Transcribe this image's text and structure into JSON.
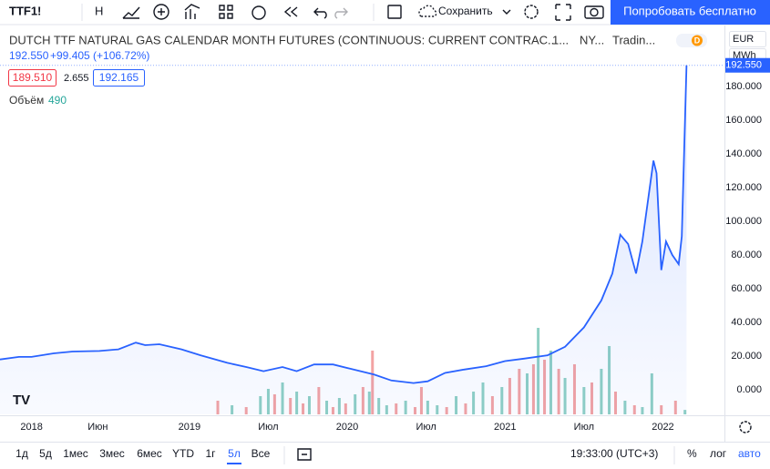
{
  "toolbar": {
    "symbol": "TTF1!",
    "interval": "H",
    "save": "Сохранить",
    "try_button": "Попробовать бесплатно"
  },
  "legend": {
    "title": "DUTCH TTF NATURAL GAS CALENDAR MONTH FUTURES (CONTINUOUS: CURRENT CONTRAC...",
    "interval": "1...",
    "exchange": "NY...",
    "source": "Tradin...",
    "badge": "D",
    "price": "192.550",
    "change": "+99.405 (+106.72%)",
    "bid": "189.510",
    "spread": "2.655",
    "ask": "192.165",
    "volume_label": "Объём",
    "volume": "490"
  },
  "currency": "EUR",
  "unit": "MWh",
  "chart_data": {
    "type": "line",
    "color": "#2962ff",
    "x": [
      2017.8,
      2017.92,
      2018,
      2018.14,
      2018.26,
      2018.43,
      2018.55,
      2018.66,
      2018.72,
      2018.81,
      2018.95,
      2019.07,
      2019.24,
      2019.36,
      2019.47,
      2019.59,
      2019.68,
      2019.79,
      2019.91,
      2020.02,
      2020.17,
      2020.28,
      2020.42,
      2020.51,
      2020.62,
      2020.74,
      2020.88,
      2021,
      2021.12,
      2021.27,
      2021.38,
      2021.5,
      2021.61,
      2021.68,
      2021.73,
      2021.78,
      2021.83,
      2021.87,
      2021.94,
      2021.96,
      2021.99,
      2022.02,
      2022.06,
      2022.1,
      2022.12,
      2022.15
    ],
    "values": [
      18,
      19.5,
      19.5,
      21.6,
      22.7,
      23,
      24,
      28,
      26.5,
      27,
      24,
      20.5,
      16,
      13.5,
      11,
      13.5,
      11,
      15,
      15,
      12.5,
      9,
      5.5,
      4,
      5,
      10,
      12,
      14,
      17,
      18.5,
      20.5,
      25.5,
      37,
      53,
      69,
      92,
      86.5,
      69,
      88,
      136,
      128.5,
      71,
      88,
      80,
      74.5,
      91,
      192.55
    ],
    "xlim": [
      2017.8,
      2022.39
    ],
    "xticks": [
      2018,
      {
        "value": 2018.42,
        "label": "Июн"
      },
      2019,
      {
        "value": 2019.5,
        "label": "Июл"
      },
      2020,
      {
        "value": 2020.5,
        "label": "Июл"
      },
      2021,
      {
        "value": 2021.5,
        "label": "Июл"
      },
      2022
    ],
    "ylim": [
      -14.6,
      215.1
    ],
    "yticks": [
      {
        "value": 0,
        "label": "0.000"
      },
      {
        "value": 20,
        "label": "20.000"
      },
      {
        "value": 40,
        "label": "40.000"
      },
      {
        "value": 60,
        "label": "60.000"
      },
      {
        "value": 80,
        "label": "80.000"
      },
      {
        "value": 100,
        "label": "100.000"
      },
      {
        "value": 120,
        "label": "120.000"
      },
      {
        "value": 140,
        "label": "140.000"
      },
      {
        "value": 160,
        "label": "160.000"
      },
      {
        "value": 180,
        "label": "180.000"
      }
    ]
  },
  "volume": {
    "type": "bar",
    "x": [
      2019.18,
      2019.27,
      2019.36,
      2019.45,
      2019.5,
      2019.54,
      2019.59,
      2019.64,
      2019.68,
      2019.72,
      2019.76,
      2019.82,
      2019.87,
      2019.91,
      2019.95,
      2019.99,
      2020.05,
      2020.1,
      2020.14,
      2020.16,
      2020.2,
      2020.25,
      2020.31,
      2020.37,
      2020.43,
      2020.47,
      2020.51,
      2020.57,
      2020.63,
      2020.69,
      2020.75,
      2020.8,
      2020.86,
      2020.92,
      2020.98,
      2021.03,
      2021.09,
      2021.14,
      2021.18,
      2021.21,
      2021.25,
      2021.29,
      2021.34,
      2021.38,
      2021.44,
      2021.5,
      2021.55,
      2021.61,
      2021.66,
      2021.7,
      2021.76,
      2021.82,
      2021.87,
      2021.93,
      2021.99,
      2022.08,
      2022.14
    ],
    "values": [
      1500,
      1000,
      800,
      2000,
      2800,
      2200,
      3500,
      1800,
      2500,
      1200,
      2000,
      3000,
      1500,
      800,
      1800,
      1200,
      2200,
      3000,
      2500,
      7000,
      1800,
      1000,
      1200,
      1500,
      800,
      3000,
      1500,
      1000,
      800,
      2000,
      1200,
      2500,
      3500,
      2000,
      3000,
      4000,
      5000,
      4500,
      5500,
      9500,
      6000,
      7000,
      5000,
      4000,
      5500,
      3000,
      3500,
      5000,
      7500,
      2500,
      1500,
      1000,
      800,
      4500,
      1000,
      1500,
      490
    ],
    "colors": [
      "#f3a3a3",
      "#8fd0c4",
      "#f3a3a3",
      "#8fd0c4",
      "#8fd0c4",
      "#f3a3a3",
      "#8fd0c4",
      "#f3a3a3",
      "#8fd0c4",
      "#f3a3a3",
      "#8fd0c4",
      "#f3a3a3",
      "#8fd0c4",
      "#f3a3a3",
      "#8fd0c4",
      "#f3a3a3",
      "#8fd0c4",
      "#f3a3a3",
      "#8fd0c4",
      "#f3a3a3",
      "#8fd0c4",
      "#8fd0c4",
      "#f3a3a3",
      "#8fd0c4",
      "#f3a3a3",
      "#f3a3a3",
      "#8fd0c4",
      "#8fd0c4",
      "#f3a3a3",
      "#8fd0c4",
      "#f3a3a3",
      "#8fd0c4",
      "#8fd0c4",
      "#f3a3a3",
      "#8fd0c4",
      "#f3a3a3",
      "#f3a3a3",
      "#8fd0c4",
      "#f3a3a3",
      "#8fd0c4",
      "#f3a3a3",
      "#8fd0c4",
      "#f3a3a3",
      "#8fd0c4",
      "#f3a3a3",
      "#8fd0c4",
      "#f3a3a3",
      "#8fd0c4",
      "#8fd0c4",
      "#f3a3a3",
      "#8fd0c4",
      "#f3a3a3",
      "#8fd0c4",
      "#8fd0c4",
      "#f3a3a3",
      "#f3a3a3",
      "#8fd0c4"
    ]
  },
  "bottom": {
    "ranges": [
      "1д",
      "5д",
      "1мес",
      "3мес",
      "6мес",
      "YTD",
      "1г",
      "5л",
      "Все"
    ],
    "active": 7,
    "time": "19:33:00 (UTC+3)",
    "percent": "%",
    "log": "лог",
    "auto": "авто"
  }
}
